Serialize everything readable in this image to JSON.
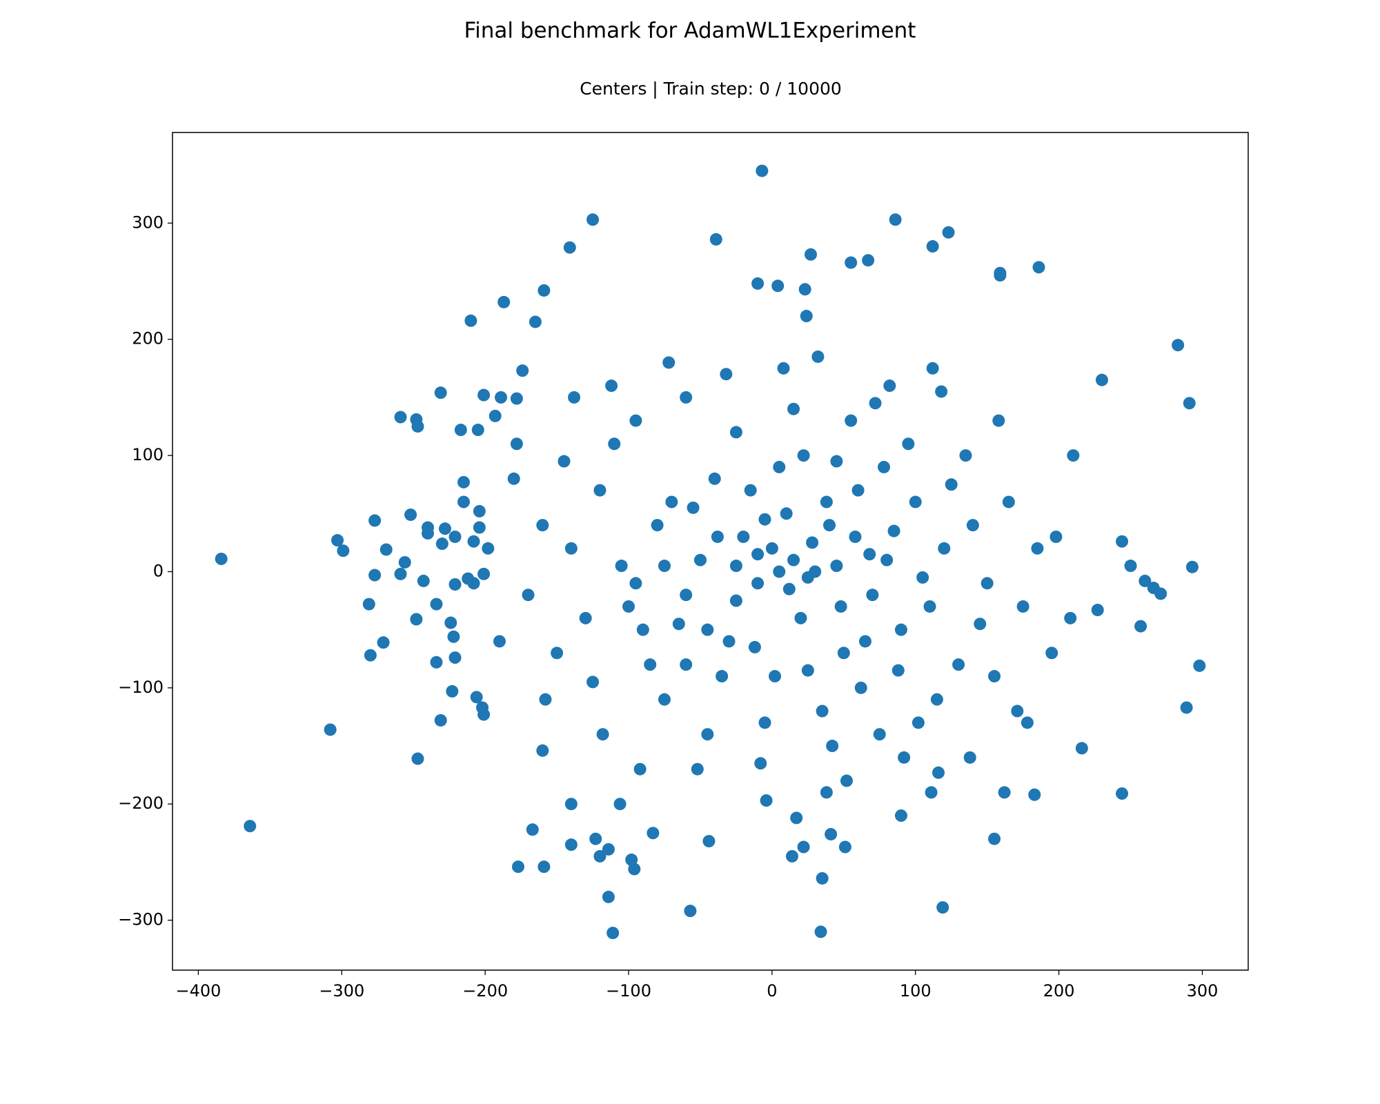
{
  "chart_data": {
    "type": "scatter",
    "title": "Final benchmark for AdamWL1Experiment",
    "subtitle": "Centers | Train step: 0 / 10000",
    "color": "#1f77b4",
    "xlim": [
      -418,
      332
    ],
    "ylim": [
      -343,
      378
    ],
    "xticks": [
      {
        "value": -400,
        "label": "−400"
      },
      {
        "value": -300,
        "label": "−300"
      },
      {
        "value": -200,
        "label": "−200"
      },
      {
        "value": -100,
        "label": "−100"
      },
      0,
      100,
      200,
      300
    ],
    "yticks": [
      {
        "value": -300,
        "label": "−300"
      },
      {
        "value": -200,
        "label": "−200"
      },
      {
        "value": -100,
        "label": "−100"
      },
      0,
      100,
      200,
      300
    ],
    "x": [
      -384,
      -364,
      -308,
      -303,
      -299,
      -281,
      -277,
      -277,
      -280,
      -271,
      -269,
      -259,
      -256,
      -259,
      -252,
      -248,
      -247,
      -248,
      -247,
      -243,
      -240,
      -240,
      -234,
      -234,
      -231,
      -230,
      -228,
      -231,
      -224,
      -223,
      -221,
      -221,
      -221,
      -222,
      -217,
      -215,
      -212,
      -208,
      -210,
      -205,
      -206,
      -204,
      -204,
      -202,
      -201,
      -201,
      -201,
      -187,
      -189,
      -193,
      -178,
      -177,
      -159,
      -159,
      -165,
      -174,
      -125,
      -141,
      -167,
      -160,
      -140,
      -140,
      -123,
      -120,
      -114,
      -114,
      -111,
      -98,
      -96,
      -106,
      -83,
      -57,
      -44,
      -39,
      -7,
      -10,
      4,
      24,
      23,
      27,
      86,
      112,
      123,
      67,
      55,
      186,
      159,
      159,
      283,
      291,
      293,
      298,
      289,
      244,
      244,
      250,
      257,
      260,
      266,
      271,
      230,
      227,
      216,
      183,
      162,
      155,
      119,
      34,
      35,
      14,
      22,
      41,
      51,
      111,
      90,
      -4,
      17,
      38,
      116,
      171,
      -100,
      -90,
      -80,
      -70,
      -60,
      -50,
      -40,
      -30,
      -20,
      -10,
      0,
      10,
      20,
      30,
      40,
      50,
      60,
      70,
      80,
      90,
      100,
      110,
      120,
      130,
      140,
      150,
      -120,
      -130,
      -140,
      -150,
      -110,
      -95,
      -75,
      -60,
      -45,
      -25,
      -5,
      15,
      35,
      55,
      75,
      95,
      115,
      135,
      155,
      -160,
      -170,
      -180,
      -190,
      165,
      175,
      185,
      195,
      -85,
      -65,
      -35,
      -15,
      5,
      25,
      45,
      65,
      85,
      105,
      125,
      145,
      -105,
      -125,
      -145,
      -55,
      -25,
      -5,
      12,
      28,
      48,
      68,
      88,
      -75,
      -95,
      38,
      58,
      78,
      -38,
      -12,
      2,
      22,
      42,
      62,
      82,
      102,
      -118,
      -138,
      -158,
      -178,
      118,
      138,
      158,
      178,
      -32,
      -52,
      -72,
      8,
      -8,
      32,
      52,
      72,
      92,
      112,
      -92,
      -112,
      -198,
      198,
      208,
      -208,
      210,
      -215,
      -60,
      -45,
      5,
      15,
      -25,
      45,
      -10,
      25
    ],
    "values": [
      11,
      -219,
      -136,
      27,
      18,
      -28,
      44,
      -3,
      -72,
      -61,
      19,
      133,
      8,
      -2,
      49,
      131,
      125,
      -41,
      -161,
      -8,
      38,
      33,
      -28,
      -78,
      154,
      24,
      37,
      -128,
      -44,
      -103,
      30,
      -11,
      -74,
      -56,
      122,
      77,
      -6,
      26,
      216,
      122,
      -108,
      52,
      38,
      -117,
      -123,
      152,
      -2,
      232,
      150,
      134,
      149,
      -254,
      -254,
      242,
      215,
      173,
      303,
      279,
      -222,
      -154,
      -200,
      -235,
      -230,
      -245,
      -239,
      -280,
      -311,
      -248,
      -256,
      -200,
      -225,
      -292,
      -232,
      286,
      345,
      248,
      246,
      220,
      243,
      273,
      303,
      280,
      292,
      268,
      266,
      262,
      255,
      257,
      195,
      145,
      4,
      -81,
      -117,
      -191,
      26,
      5,
      -47,
      -8,
      -14,
      -19,
      165,
      -33,
      -152,
      -192,
      -190,
      -230,
      -289,
      -310,
      -264,
      -245,
      -237,
      -226,
      -237,
      -190,
      -210,
      -197,
      -212,
      -190,
      -173,
      -120,
      -30,
      -50,
      40,
      60,
      -20,
      10,
      80,
      -60,
      30,
      -10,
      20,
      50,
      -40,
      0,
      40,
      -70,
      70,
      -20,
      10,
      -50,
      60,
      -30,
      20,
      -80,
      40,
      -10,
      70,
      -40,
      20,
      -70,
      110,
      130,
      -110,
      150,
      -140,
      120,
      -130,
      140,
      -120,
      130,
      -140,
      110,
      -110,
      100,
      -90,
      40,
      -20,
      80,
      -60,
      60,
      -30,
      20,
      -70,
      -80,
      -45,
      -90,
      70,
      90,
      -85,
      95,
      -60,
      35,
      -5,
      75,
      -45,
      5,
      -95,
      95,
      55,
      -25,
      45,
      -15,
      25,
      -30,
      15,
      -85,
      5,
      -10,
      60,
      30,
      90,
      30,
      -65,
      -90,
      100,
      -150,
      -100,
      160,
      -130,
      -140,
      150,
      -110,
      110,
      155,
      -160,
      130,
      -130,
      170,
      -170,
      180,
      175,
      -165,
      185,
      -180,
      145,
      -160,
      175,
      -170,
      160,
      20,
      30,
      -40,
      -10,
      100,
      60,
      -80,
      -50,
      0,
      10,
      5,
      5,
      15,
      -5
    ]
  }
}
